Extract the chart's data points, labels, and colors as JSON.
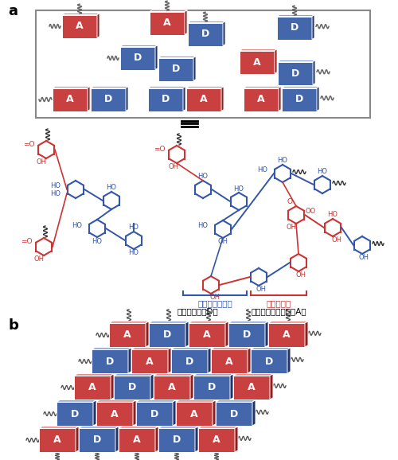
{
  "bg_color": "#FFFFFF",
  "red_face": "#C94040",
  "red_top": "#E06060",
  "red_side": "#8B2020",
  "blue_face": "#4466AA",
  "blue_top": "#6688CC",
  "blue_side": "#223366",
  "label_blue": "ベンゼノイド体",
  "label_red": "キノイド体",
  "label_donor": "電子ドナー（D）",
  "label_acceptor": "電子アクセプター（A）",
  "BLUE": "#3355AA",
  "RED": "#CC3333"
}
